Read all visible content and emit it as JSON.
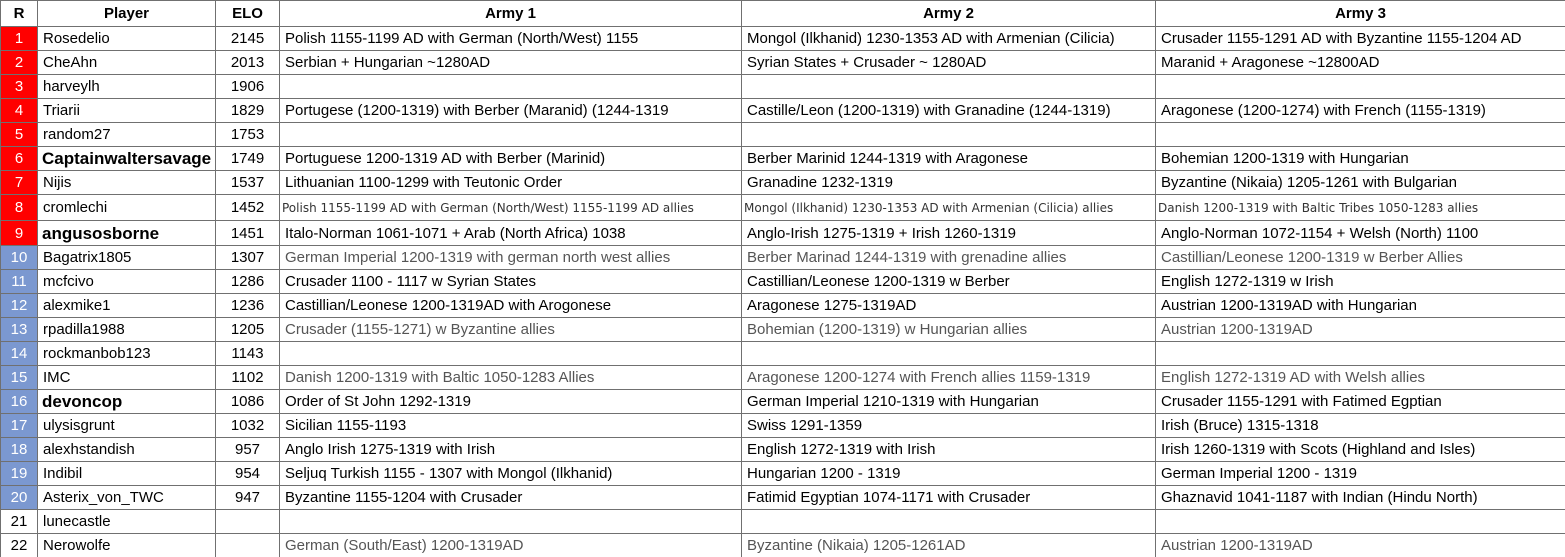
{
  "table": {
    "headers": {
      "rank": "R",
      "player": "Player",
      "elo": "ELO",
      "army1": "Army 1",
      "army2": "Army 2",
      "army3": "Army 3"
    },
    "rows": [
      {
        "rank": "1",
        "player": "Rosedelio",
        "elo": "2145",
        "army1": "Polish 1155-1199 AD with German (North/West) 1155",
        "army2": "Mongol (Ilkhanid) 1230-1353 AD with Armenian (Cilicia)",
        "army3": "Crusader 1155-1291 AD with Byzantine 1155-1204 AD",
        "rank_color": "#ff0000",
        "rank_text_color": "#ffffff",
        "army_text_color": "#000000"
      },
      {
        "rank": "2",
        "player": "CheAhn",
        "elo": "2013",
        "army1": "Serbian + Hungarian ~1280AD",
        "army2": "Syrian States + Crusader ~ 1280AD",
        "army3": "Maranid + Aragonese ~12800AD",
        "rank_color": "#ff0000",
        "rank_text_color": "#ffffff",
        "army_text_color": "#000000"
      },
      {
        "rank": "3",
        "player": "harveylh",
        "elo": "1906",
        "army1": "",
        "army2": "",
        "army3": "",
        "rank_color": "#ff0000",
        "rank_text_color": "#ffffff",
        "army_text_color": "#000000"
      },
      {
        "rank": "4",
        "player": "Triarii",
        "elo": "1829",
        "army1": "Portugese (1200-1319) with Berber (Maranid) (1244-1319",
        "army2": "Castille/Leon (1200-1319) with Granadine (1244-1319)",
        "army3": "Aragonese (1200-1274) with French (1155-1319)",
        "rank_color": "#ff0000",
        "rank_text_color": "#ffffff",
        "army_text_color": "#000000"
      },
      {
        "rank": "5",
        "player": "random27",
        "elo": "1753",
        "army1": "",
        "army2": "",
        "army3": "",
        "rank_color": "#ff0000",
        "rank_text_color": "#ffffff",
        "army_text_color": "#000000"
      },
      {
        "rank": "6",
        "player": "Captainwaltersavage",
        "elo": "1749",
        "army1": "Portuguese 1200-1319 AD with Berber (Marinid)",
        "army2": "Berber Marinid 1244-1319 with Aragonese",
        "army3": "Bohemian 1200-1319 with Hungarian",
        "rank_color": "#ff0000",
        "rank_text_color": "#ffffff",
        "army_text_color": "#000000"
      },
      {
        "rank": "7",
        "player": "Nijis",
        "elo": "1537",
        "army1": "Lithuanian 1100-1299 with Teutonic Order",
        "army2": "Granadine 1232-1319",
        "army3": "Byzantine (Nikaia) 1205-1261 with Bulgarian",
        "rank_color": "#ff0000",
        "rank_text_color": "#ffffff",
        "army_text_color": "#000000"
      },
      {
        "rank": "8",
        "player": "cromlechi",
        "elo": "1452",
        "army1": "Polish 1155-1199 AD with German (North/West) 1155-1199 AD allies",
        "army2": "Mongol (Ilkhanid) 1230-1353 AD with Armenian (Cilicia) allies",
        "army3": "Danish 1200-1319 with Baltic Tribes 1050-1283 allies",
        "rank_color": "#ff0000",
        "rank_text_color": "#ffffff",
        "army_text_color": "#333333"
      },
      {
        "rank": "9",
        "player": "angusosborne",
        "elo": "1451",
        "army1": "Italo-Norman 1061-1071 + Arab (North Africa) 1038",
        "army2": "Anglo-Irish 1275-1319 + Irish 1260-1319",
        "army3": "Anglo-Norman 1072-1154 + Welsh (North) 1100",
        "rank_color": "#ff0000",
        "rank_text_color": "#ffffff",
        "army_text_color": "#000000"
      },
      {
        "rank": "10",
        "player": "Bagatrix1805",
        "elo": "1307",
        "army1": "German Imperial 1200-1319 with german north west allies",
        "army2": "Berber Marinad 1244-1319 with grenadine allies",
        "army3": "Castillian/Leonese 1200-1319 w Berber Allies",
        "rank_color": "#7b98d0",
        "rank_text_color": "#ffffff",
        "army_text_color": "#555555"
      },
      {
        "rank": "11",
        "player": "mcfcivo",
        "elo": "1286",
        "army1": "Crusader 1100 - 1117 w Syrian States",
        "army2": "Castillian/Leonese 1200-1319 w Berber",
        "army3": "English 1272-1319 w Irish",
        "rank_color": "#7b98d0",
        "rank_text_color": "#ffffff",
        "army_text_color": "#000000"
      },
      {
        "rank": "12",
        "player": "alexmike1",
        "elo": "1236",
        "army1": "Castillian/Leonese 1200-1319AD with Arogonese",
        "army2": "Aragonese 1275-1319AD",
        "army3": "Austrian 1200-1319AD with Hungarian",
        "rank_color": "#7b98d0",
        "rank_text_color": "#ffffff",
        "army_text_color": "#000000"
      },
      {
        "rank": "13",
        "player": "rpadilla1988",
        "elo": "1205",
        "army1": "Crusader (1155-1271) w Byzantine allies",
        "army2": "Bohemian (1200-1319) w Hungarian allies",
        "army3": "Austrian 1200-1319AD",
        "rank_color": "#7b98d0",
        "rank_text_color": "#ffffff",
        "army_text_color": "#555555"
      },
      {
        "rank": "14",
        "player": "rockmanbob123",
        "elo": "1143",
        "army1": "",
        "army2": "",
        "army3": "",
        "rank_color": "#7b98d0",
        "rank_text_color": "#ffffff",
        "army_text_color": "#000000"
      },
      {
        "rank": "15",
        "player": "IMC",
        "elo": "1102",
        "army1": "Danish 1200-1319 with Baltic 1050-1283 Allies",
        "army2": "Aragonese 1200-1274 with French allies 1159-1319",
        "army3": "English 1272-1319 AD with Welsh allies",
        "rank_color": "#7b98d0",
        "rank_text_color": "#ffffff",
        "army_text_color": "#555555"
      },
      {
        "rank": "16",
        "player": "devoncop",
        "elo": "1086",
        "army1": "Order of St John 1292-1319",
        "army2": "German Imperial 1210-1319 with Hungarian",
        "army3": "Crusader 1155-1291 with Fatimed Egptian",
        "rank_color": "#7b98d0",
        "rank_text_color": "#ffffff",
        "army_text_color": "#000000"
      },
      {
        "rank": "17",
        "player": "ulysisgrunt",
        "elo": "1032",
        "army1": "Sicilian 1155-1193",
        "army2": "Swiss 1291-1359",
        "army3": "Irish (Bruce) 1315-1318",
        "rank_color": "#7b98d0",
        "rank_text_color": "#ffffff",
        "army_text_color": "#000000"
      },
      {
        "rank": "18",
        "player": "alexhstandish",
        "elo": "957",
        "army1": "Anglo Irish 1275-1319 with Irish",
        "army2": "English 1272-1319 with Irish",
        "army3": "Irish 1260-1319 with Scots (Highland and Isles)",
        "rank_color": "#7b98d0",
        "rank_text_color": "#ffffff",
        "army_text_color": "#000000"
      },
      {
        "rank": "19",
        "player": "Indibil",
        "elo": "954",
        "army1": "Seljuq Turkish 1155 - 1307 with Mongol (Ilkhanid)",
        "army2": "Hungarian 1200 - 1319",
        "army3": "German Imperial 1200 - 1319",
        "rank_color": "#7b98d0",
        "rank_text_color": "#ffffff",
        "army_text_color": "#000000"
      },
      {
        "rank": "20",
        "player": "Asterix_von_TWC",
        "elo": "947",
        "army1": "Byzantine 1155-1204 with Crusader",
        "army2": "Fatimid Egyptian 1074-1171 with Crusader",
        "army3": "Ghaznavid 1041-1187 with Indian (Hindu North)",
        "rank_color": "#7b98d0",
        "rank_text_color": "#ffffff",
        "army_text_color": "#000000"
      },
      {
        "rank": "21",
        "player": "lunecastle",
        "elo": "",
        "army1": "",
        "army2": "",
        "army3": "",
        "rank_color": "#ffffff",
        "rank_text_color": "#000000",
        "army_text_color": "#000000"
      },
      {
        "rank": "22",
        "player": "Nerowolfe",
        "elo": "",
        "army1": "German (South/East) 1200-1319AD",
        "army2": "Byzantine (Nikaia) 1205-1261AD",
        "army3": "Austrian 1200-1319AD",
        "rank_color": "#ffffff",
        "rank_text_color": "#000000",
        "army_text_color": "#555555"
      }
    ]
  }
}
